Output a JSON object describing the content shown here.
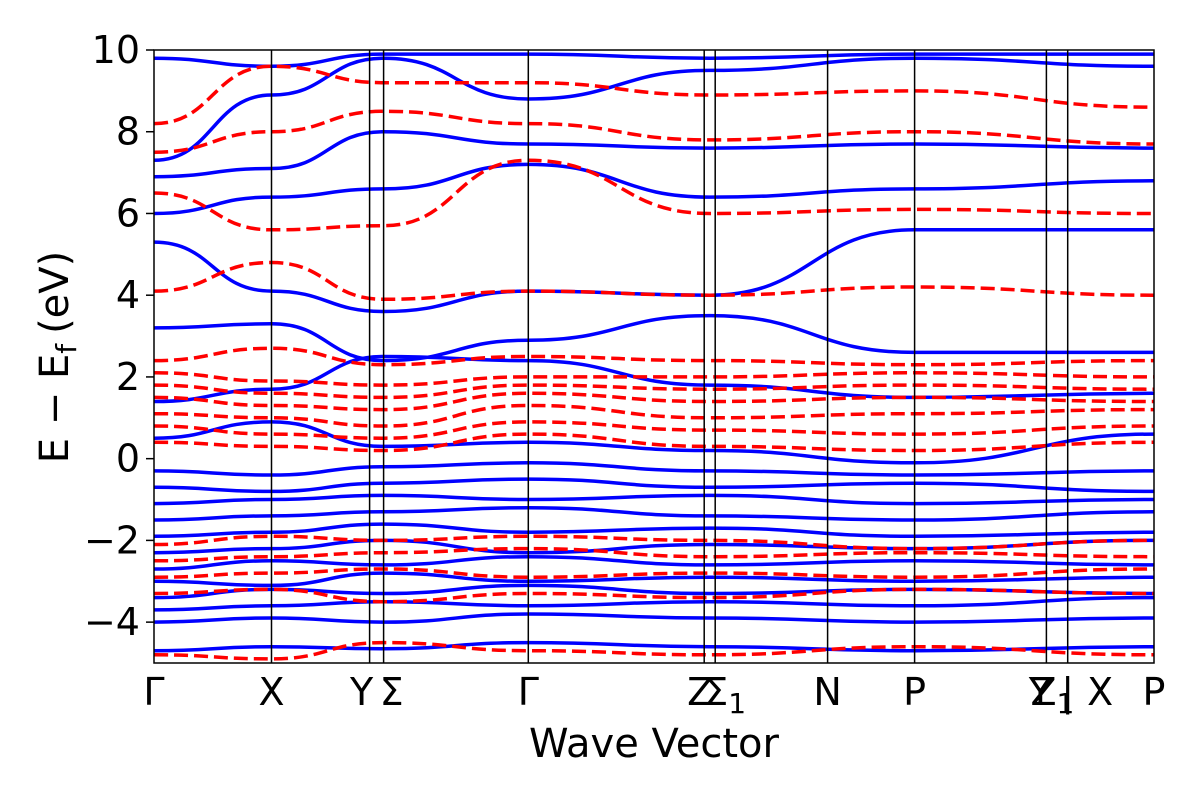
{
  "chart_data": {
    "type": "line",
    "title": "",
    "xlabel": "Wave Vector",
    "ylabel": "E − E",
    "ylabel_subscript": "f",
    "ylabel_unit": "(eV)",
    "ylim": [
      -5,
      10
    ],
    "xlim": [
      0,
      1
    ],
    "grid": false,
    "legend": "none",
    "yticks": [
      -4,
      -2,
      0,
      2,
      4,
      6,
      8,
      10
    ],
    "ytick_labels": [
      "−4",
      "−2",
      "0",
      "2",
      "4",
      "6",
      "8",
      "10"
    ],
    "kpoints": [
      {
        "label": "Γ",
        "x": 0.0
      },
      {
        "label": "X",
        "x": 0.1175
      },
      {
        "label": "Y",
        "x": 0.2253
      },
      {
        "label": "Σ",
        "x": 0.2433
      },
      {
        "label": "Γ",
        "x": 0.4087
      },
      {
        "label": "Z",
        "x": 0.6054
      },
      {
        "label": "Σ",
        "x": 0.6118,
        "sub": "1"
      },
      {
        "label": "N",
        "x": 0.7482
      },
      {
        "label": "P",
        "x": 0.8454
      },
      {
        "label": "Y",
        "x": 0.9788
      },
      {
        "label": "Z",
        "x": 0.9788,
        "sub": "1"
      },
      {
        "label": "X",
        "x": 1.0
      },
      {
        "label": "P",
        "x": 1.1
      },
      {
        "label": "|",
        "x": 0.9933
      }
    ],
    "series": [
      {
        "style": "solid",
        "color": "#0000ff",
        "bands": [
          [
            -4.7,
            -4.6,
            -4.65,
            -4.5,
            -4.6,
            -4.7,
            -4.6
          ],
          [
            -4.0,
            -3.9,
            -4.0,
            -3.8,
            -3.9,
            -4.0,
            -3.9
          ],
          [
            -3.7,
            -3.6,
            -3.5,
            -3.6,
            -3.5,
            -3.6,
            -3.4
          ],
          [
            -3.4,
            -3.2,
            -3.3,
            -3.1,
            -3.3,
            -3.2,
            -3.3
          ],
          [
            -3.0,
            -3.1,
            -2.8,
            -3.0,
            -2.9,
            -3.0,
            -2.9
          ],
          [
            -2.7,
            -2.5,
            -2.6,
            -2.4,
            -2.6,
            -2.5,
            -2.6
          ],
          [
            -2.3,
            -2.2,
            -2.0,
            -2.3,
            -2.1,
            -2.2,
            -2.0
          ],
          [
            -1.9,
            -1.8,
            -1.6,
            -1.8,
            -1.7,
            -1.9,
            -1.8
          ],
          [
            -1.5,
            -1.4,
            -1.3,
            -1.2,
            -1.4,
            -1.5,
            -1.3
          ],
          [
            -1.1,
            -1.0,
            -0.9,
            -1.0,
            -0.9,
            -1.1,
            -1.0
          ],
          [
            -0.7,
            -0.8,
            -0.6,
            -0.5,
            -0.7,
            -0.6,
            -0.8
          ],
          [
            -0.3,
            -0.4,
            -0.2,
            -0.1,
            -0.3,
            -0.4,
            -0.3
          ],
          [
            0.5,
            0.9,
            0.3,
            0.4,
            0.2,
            -0.1,
            0.6
          ],
          [
            1.4,
            1.7,
            2.5,
            2.4,
            1.8,
            1.5,
            1.6
          ],
          [
            3.2,
            3.3,
            2.4,
            2.9,
            3.5,
            2.6,
            2.6
          ],
          [
            5.3,
            4.1,
            3.6,
            4.1,
            4.0,
            5.6,
            5.6
          ],
          [
            6.0,
            6.4,
            6.6,
            7.2,
            6.4,
            6.6,
            6.8
          ],
          [
            6.9,
            7.1,
            8.0,
            7.7,
            7.6,
            7.7,
            7.6
          ],
          [
            7.3,
            8.9,
            9.8,
            8.8,
            9.5,
            9.8,
            9.6
          ],
          [
            9.8,
            9.6,
            9.9,
            9.9,
            9.8,
            9.9,
            9.9
          ]
        ]
      },
      {
        "style": "dashed",
        "color": "#ff0000",
        "bands": [
          [
            -4.8,
            -4.9,
            -4.5,
            -4.7,
            -4.8,
            -4.6,
            -4.8
          ],
          [
            -3.3,
            -3.2,
            -3.5,
            -3.3,
            -3.4,
            -3.2,
            -3.3
          ],
          [
            -2.9,
            -2.8,
            -2.7,
            -2.9,
            -2.8,
            -2.9,
            -2.7
          ],
          [
            -2.5,
            -2.4,
            -2.3,
            -2.2,
            -2.4,
            -2.3,
            -2.4
          ],
          [
            -2.1,
            -1.9,
            -2.0,
            -1.9,
            -2.0,
            -2.2,
            -2.0
          ],
          [
            0.4,
            0.3,
            0.2,
            0.6,
            0.3,
            0.2,
            0.4
          ],
          [
            0.8,
            0.6,
            0.5,
            0.9,
            0.7,
            0.6,
            0.8
          ],
          [
            1.1,
            1.0,
            0.8,
            1.3,
            1.0,
            1.1,
            1.2
          ],
          [
            1.5,
            1.3,
            1.2,
            1.6,
            1.4,
            1.5,
            1.4
          ],
          [
            1.8,
            1.6,
            1.5,
            1.8,
            1.7,
            1.8,
            1.7
          ],
          [
            2.1,
            1.9,
            1.8,
            2.0,
            2.0,
            2.1,
            2.0
          ],
          [
            2.4,
            2.7,
            2.3,
            2.5,
            2.4,
            2.3,
            2.4
          ],
          [
            4.1,
            4.8,
            3.9,
            4.1,
            4.0,
            4.2,
            4.0
          ],
          [
            6.5,
            5.6,
            5.7,
            7.3,
            6.0,
            6.1,
            6.0
          ],
          [
            7.5,
            8.0,
            8.5,
            8.2,
            7.8,
            8.0,
            7.7
          ],
          [
            8.2,
            9.6,
            9.2,
            9.2,
            8.9,
            9.0,
            8.6
          ]
        ]
      }
    ]
  }
}
